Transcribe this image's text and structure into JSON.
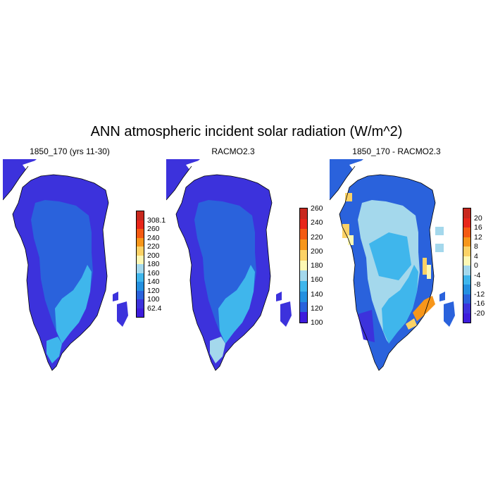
{
  "title": "ANN atmospheric incident solar radiation (W/m^2)",
  "panels": [
    {
      "title": "1850_170 (yrs 11-30)",
      "colorbar": {
        "labels": [
          "308.1",
          "260",
          "240",
          "220",
          "200",
          "180",
          "160",
          "140",
          "120",
          "100",
          "62.4"
        ],
        "colors": [
          "#c8281e",
          "#e8261a",
          "#f45a12",
          "#f7961a",
          "#fcd266",
          "#fdf8b4",
          "#a4d8ec",
          "#3fb6ec",
          "#2490e0",
          "#2a62dc",
          "#3c32dc",
          "#3d1cdc"
        ]
      }
    },
    {
      "title": "RACMO2.3",
      "colorbar": {
        "labels": [
          "260",
          "240",
          "220",
          "200",
          "180",
          "160",
          "140",
          "120",
          "100"
        ],
        "colors": [
          "#c8281e",
          "#e8261a",
          "#f45a12",
          "#f7961a",
          "#fcd266",
          "#fdf8b4",
          "#a4d8ec",
          "#3fb6ec",
          "#2490e0",
          "#2a62dc",
          "#3d1cdc"
        ]
      }
    },
    {
      "title": "1850_170 - RACMO2.3",
      "colorbar": {
        "labels": [
          "20",
          "16",
          "12",
          "8",
          "4",
          "0",
          "-4",
          "-8",
          "-12",
          "-16",
          "-20"
        ],
        "colors": [
          "#c8281e",
          "#e8261a",
          "#f45a12",
          "#f7961a",
          "#fcd266",
          "#fdf8b4",
          "#a4d8ec",
          "#3fb6ec",
          "#2490e0",
          "#2a62dc",
          "#3c32dc",
          "#3d1cdc"
        ]
      }
    }
  ]
}
